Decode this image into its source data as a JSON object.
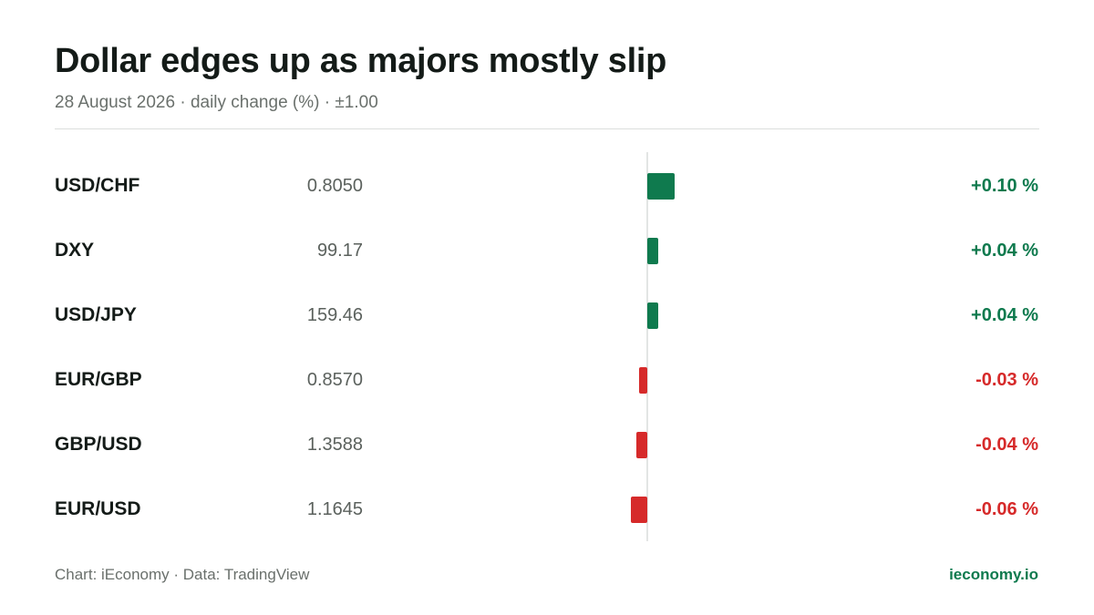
{
  "header": {
    "title": "Dollar edges up as majors mostly slip",
    "subtitle": "28 August 2026 · daily change (%) · ±1.00"
  },
  "colors": {
    "positive": "#0f7a4e",
    "negative": "#d62a2a",
    "brand": "#0f7a4e"
  },
  "chart_data": {
    "type": "bar",
    "orientation": "horizontal",
    "title": "Dollar edges up as majors mostly slip",
    "subtitle": "28 August 2026 · daily change (%) · ±1.00",
    "categories": [
      "USD/CHF",
      "DXY",
      "USD/JPY",
      "EUR/GBP",
      "GBP/USD",
      "EUR/USD"
    ],
    "prices": [
      "0.8050",
      "99.17",
      "159.46",
      "0.8570",
      "1.3588",
      "1.1645"
    ],
    "values": [
      0.1,
      0.04,
      0.04,
      -0.03,
      -0.04,
      -0.06
    ],
    "value_labels": [
      "+0.10 %",
      "+0.04 %",
      "+0.04 %",
      "-0.03 %",
      "-0.04 %",
      "-0.06 %"
    ],
    "unit": "%"
  },
  "footer": {
    "credit": "Chart: iEconomy · Data: TradingView",
    "site": "ieconomy.io"
  }
}
